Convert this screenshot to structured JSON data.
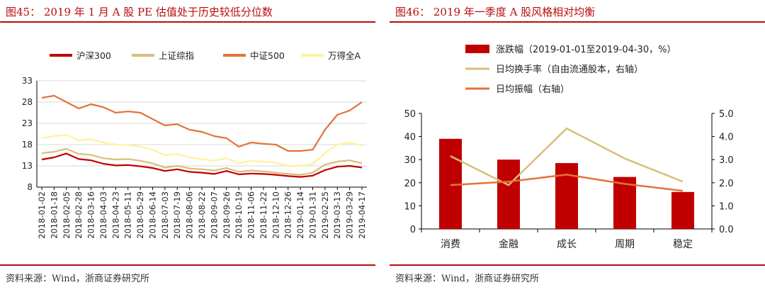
{
  "figures": [
    {
      "caption": "图45： 2019 年 1 月 A 股 PE 估值处于历史较低分位数",
      "source": "资料来源：Wind，浙商证券研究所"
    },
    {
      "caption": "图46： 2019 年一季度 A 股风格相对均衡",
      "source": "资料来源：Wind，浙商证券研究所"
    }
  ],
  "colors": {
    "hs300": "#c00000",
    "sz50": "#d9be79",
    "zz500": "#e2733a",
    "wande": "#fff29a",
    "bar": "#c00000",
    "turnover": "#d9be79",
    "amplitude": "#e2733a",
    "accent": "#b80d0d"
  },
  "chart_data": [
    {
      "type": "line",
      "title": "",
      "xlabel": "",
      "ylabel": "",
      "ylim": [
        8,
        33
      ],
      "yticks": [
        8,
        13,
        18,
        23,
        28,
        33
      ],
      "grid": true,
      "legend_position": "top",
      "x_tick_labels": [
        "2018-01-02",
        "2018-01-18",
        "2018-02-05",
        "2018-02-28",
        "2018-03-16",
        "2018-04-03",
        "2018-04-23",
        "2018-05-11",
        "2018-05-29",
        "2018-06-14",
        "2018-07-03",
        "2018-07-19",
        "2018-08-06",
        "2018-08-22",
        "2018-09-07",
        "2018-09-26",
        "2018-10-19",
        "2018-11-06",
        "2018-11-22",
        "2018-12-10",
        "2018-12-26",
        "2019-01-14",
        "2019-01-31",
        "2019-02-25",
        "2019-03-13",
        "2019-03-29",
        "2019-04-17"
      ],
      "series": [
        {
          "name": "沪深300",
          "color_key": "hs300",
          "values": [
            14.5,
            15.0,
            15.9,
            14.6,
            14.3,
            13.5,
            13.1,
            13.2,
            12.9,
            12.5,
            11.8,
            12.2,
            11.6,
            11.4,
            11.1,
            11.8,
            11.0,
            11.2,
            11.1,
            10.9,
            10.6,
            10.4,
            10.7,
            12.0,
            12.8,
            13.0,
            12.6
          ]
        },
        {
          "name": "上证综指",
          "color_key": "sz50",
          "values": [
            16.0,
            16.3,
            17.0,
            15.8,
            15.6,
            14.8,
            14.5,
            14.6,
            14.2,
            13.6,
            12.6,
            13.0,
            12.4,
            12.2,
            11.9,
            12.5,
            11.6,
            11.9,
            11.7,
            11.4,
            11.1,
            10.9,
            11.4,
            13.3,
            14.0,
            14.3,
            13.6
          ]
        },
        {
          "name": "中证500",
          "color_key": "zz500",
          "values": [
            29.0,
            29.5,
            28.0,
            26.5,
            27.5,
            26.8,
            25.5,
            25.8,
            25.5,
            24.0,
            22.5,
            22.8,
            21.5,
            21.0,
            20.0,
            19.5,
            17.5,
            18.5,
            18.2,
            18.0,
            16.5,
            16.5,
            16.8,
            21.5,
            25.0,
            26.0,
            28.0
          ]
        },
        {
          "name": "万得全A",
          "color_key": "wande",
          "values": [
            19.5,
            20.0,
            20.3,
            19.0,
            19.3,
            18.5,
            18.0,
            17.9,
            17.5,
            16.8,
            15.5,
            15.8,
            15.0,
            14.6,
            14.2,
            14.8,
            13.6,
            14.2,
            14.0,
            13.8,
            13.0,
            13.0,
            13.5,
            16.0,
            18.0,
            18.5,
            17.7
          ]
        }
      ]
    },
    {
      "type": "bar",
      "title": "",
      "xlabel": "",
      "ylabel": "",
      "categories": [
        "消费",
        "金融",
        "成长",
        "周期",
        "稳定"
      ],
      "ylim": [
        0,
        50
      ],
      "yticks": [
        0,
        10,
        20,
        30,
        40,
        50
      ],
      "y2lim": [
        0,
        5
      ],
      "y2ticks": [
        "0.0",
        "1.0",
        "2.0",
        "3.0",
        "4.0",
        "5.0"
      ],
      "grid": false,
      "legend_position": "top",
      "series": [
        {
          "name": "涨跌幅（2019-01-01至2019-04-30，%）",
          "kind": "bar",
          "axis": "left",
          "color_key": "bar",
          "values": [
            39.0,
            30.0,
            28.5,
            22.5,
            16.0
          ]
        },
        {
          "name": "日均换手率（自由流通股本，右轴）",
          "kind": "line",
          "axis": "right",
          "color_key": "turnover",
          "values": [
            3.15,
            1.9,
            4.35,
            3.05,
            2.05
          ]
        },
        {
          "name": "日均振幅（右轴）",
          "kind": "line",
          "axis": "right",
          "color_key": "amplitude",
          "values": [
            1.9,
            2.05,
            2.35,
            1.95,
            1.65
          ]
        }
      ]
    }
  ]
}
